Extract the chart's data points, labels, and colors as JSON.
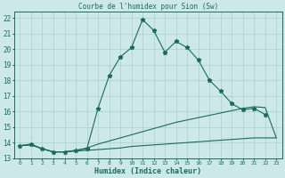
{
  "title": "Courbe de l'humidex pour Sion (Sw)",
  "xlabel": "Humidex (Indice chaleur)",
  "bg_color": "#cce8e8",
  "line_color": "#1a6b5a",
  "grid_color": "#aacfcf",
  "xlim": [
    -0.5,
    23.5
  ],
  "ylim": [
    13,
    22.4
  ],
  "xticks": [
    0,
    1,
    2,
    3,
    4,
    5,
    6,
    7,
    8,
    9,
    10,
    11,
    12,
    13,
    14,
    15,
    16,
    17,
    18,
    19,
    20,
    21,
    22,
    23
  ],
  "yticks": [
    13,
    14,
    15,
    16,
    17,
    18,
    19,
    20,
    21,
    22
  ],
  "curve1_x": [
    0,
    1,
    2,
    3,
    4,
    5,
    6,
    7,
    8,
    9,
    10,
    11,
    12,
    13,
    14,
    15,
    16,
    17,
    18,
    19,
    20,
    21,
    22
  ],
  "curve1_y": [
    13.8,
    13.9,
    13.6,
    13.4,
    13.4,
    13.5,
    13.6,
    16.2,
    18.3,
    19.5,
    20.1,
    21.9,
    21.2,
    19.8,
    20.5,
    20.1,
    19.3,
    18.0,
    17.3,
    16.5,
    16.1,
    16.2,
    15.8
  ],
  "curve2_x": [
    0,
    1,
    2,
    3,
    4,
    5,
    6,
    7,
    8,
    9,
    10,
    11,
    12,
    13,
    14,
    15,
    16,
    17,
    18,
    19,
    20,
    21,
    22,
    23
  ],
  "curve2_y": [
    13.8,
    13.85,
    13.6,
    13.4,
    13.4,
    13.5,
    13.65,
    13.9,
    14.1,
    14.3,
    14.5,
    14.7,
    14.9,
    15.1,
    15.3,
    15.45,
    15.6,
    15.75,
    15.9,
    16.05,
    16.2,
    16.3,
    16.25,
    14.3
  ],
  "curve3_x": [
    0,
    1,
    2,
    3,
    4,
    5,
    6,
    7,
    8,
    9,
    10,
    11,
    12,
    13,
    14,
    15,
    16,
    17,
    18,
    19,
    20,
    21,
    22,
    23
  ],
  "curve3_y": [
    13.8,
    13.85,
    13.6,
    13.4,
    13.4,
    13.45,
    13.5,
    13.55,
    13.6,
    13.65,
    13.75,
    13.8,
    13.85,
    13.9,
    13.95,
    14.0,
    14.05,
    14.1,
    14.15,
    14.2,
    14.25,
    14.3,
    14.3,
    14.3
  ]
}
